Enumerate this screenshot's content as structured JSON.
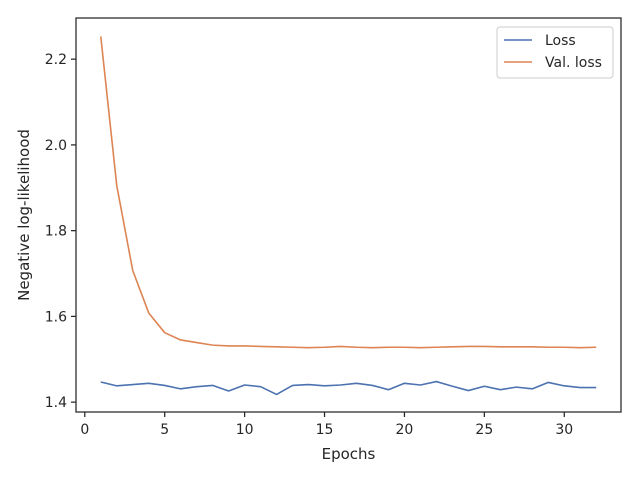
{
  "chart_data": {
    "type": "line",
    "title": "",
    "xlabel": "Epochs",
    "ylabel": "Negative log-likelihood",
    "xlim": [
      -0.55,
      33.55
    ],
    "ylim": [
      1.377,
      2.296
    ],
    "xticks": [
      0,
      5,
      10,
      15,
      20,
      25,
      30
    ],
    "yticks": [
      1.4,
      1.6,
      1.8,
      2.0,
      2.2
    ],
    "ytick_labels": [
      "1.4",
      "1.6",
      "1.8",
      "2.0",
      "2.2"
    ],
    "grid": false,
    "legend": "top-right",
    "x": [
      1,
      2,
      3,
      4,
      5,
      6,
      7,
      8,
      9,
      10,
      11,
      12,
      13,
      14,
      15,
      16,
      17,
      18,
      19,
      20,
      21,
      22,
      23,
      24,
      25,
      26,
      27,
      28,
      29,
      30,
      31,
      32
    ],
    "series": [
      {
        "name": "Loss",
        "color": "#4c72b0",
        "values": [
          1.447,
          1.438,
          1.441,
          1.444,
          1.439,
          1.431,
          1.436,
          1.439,
          1.426,
          1.44,
          1.436,
          1.418,
          1.439,
          1.441,
          1.438,
          1.44,
          1.444,
          1.439,
          1.429,
          1.444,
          1.44,
          1.448,
          1.437,
          1.427,
          1.437,
          1.429,
          1.435,
          1.431,
          1.446,
          1.438,
          1.434,
          1.434
        ]
      },
      {
        "name": "Val. loss",
        "color": "#dd8452",
        "values": [
          2.253,
          1.905,
          1.707,
          1.608,
          1.562,
          1.545,
          1.539,
          1.533,
          1.531,
          1.531,
          1.53,
          1.529,
          1.528,
          1.527,
          1.528,
          1.53,
          1.528,
          1.527,
          1.528,
          1.528,
          1.527,
          1.528,
          1.529,
          1.53,
          1.53,
          1.529,
          1.529,
          1.529,
          1.528,
          1.528,
          1.527,
          1.528
        ]
      }
    ]
  }
}
